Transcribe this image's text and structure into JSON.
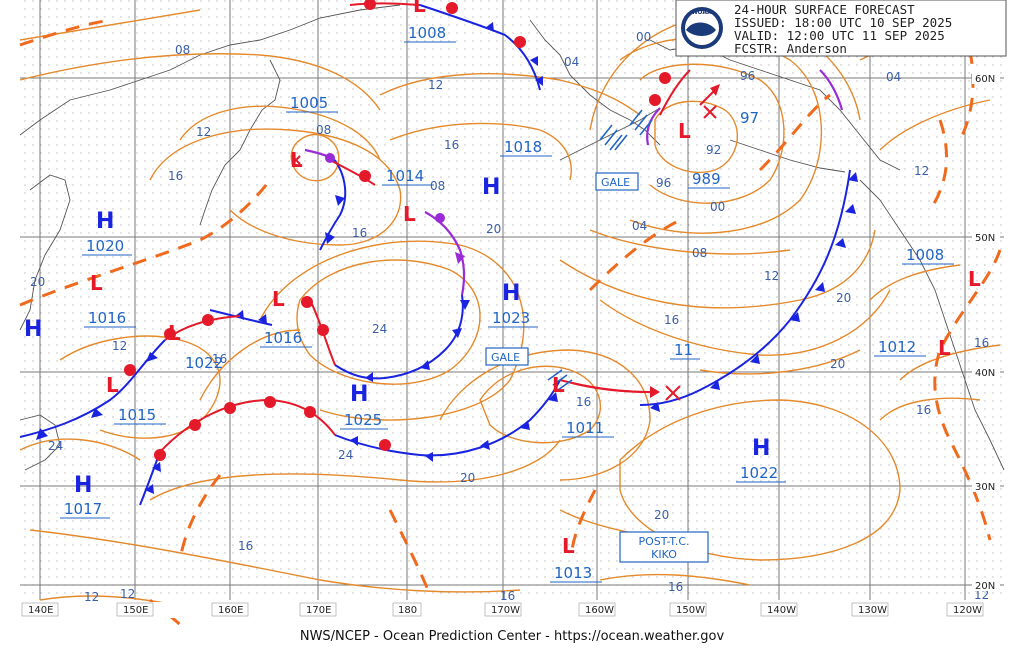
{
  "header": {
    "line1": "24-HOUR SURFACE FORECAST",
    "line2": "ISSUED: 18:00 UTC 10 SEP 2025",
    "line3": "VALID:  12:00 UTC 11 SEP 2025",
    "line4": "FCSTR:  Anderson",
    "logo_text": "NOAA"
  },
  "footer": "NWS/NCEP - Ocean Prediction Center - https://ocean.weather.gov",
  "lon_labels": [
    "140E",
    "150E",
    "160E",
    "170E",
    "180",
    "170W",
    "160W",
    "150W",
    "140W",
    "130W",
    "120W"
  ],
  "lat_labels": [
    "60N",
    "50N",
    "40N",
    "30N",
    "20N"
  ],
  "highs": [
    {
      "label": "H",
      "pressure": "1020"
    },
    {
      "label": "H",
      "pressure": ""
    },
    {
      "label": "H",
      "pressure": "1025"
    },
    {
      "label": "H",
      "pressure": "1017"
    },
    {
      "label": "H",
      "pressure": "1023"
    },
    {
      "label": "H",
      "pressure": ""
    },
    {
      "label": "H",
      "pressure": "1022"
    }
  ],
  "lows": [
    {
      "label": "L",
      "pressure": "1005"
    },
    {
      "label": "L",
      "pressure": "1008"
    },
    {
      "label": "L",
      "pressure": "1014"
    },
    {
      "label": "L",
      "pressure": "1016"
    },
    {
      "label": "L",
      "pressure": "1016"
    },
    {
      "label": "L",
      "pressure": "1015"
    },
    {
      "label": "L",
      "pressure": "1018"
    },
    {
      "label": "L",
      "pressure": "989"
    },
    {
      "label": "L",
      "pressure": "1011"
    },
    {
      "label": "L",
      "pressure": "1013"
    },
    {
      "label": "L",
      "pressure": "1008"
    },
    {
      "label": "L",
      "pressure": "1012"
    }
  ],
  "other_pressure_labels": [
    "1022",
    "11",
    "97"
  ],
  "warnings": [
    "GALE",
    "GALE"
  ],
  "storm_box": {
    "line1": "POST-T.C.",
    "line2": "KIKO"
  },
  "isobar_labels": [
    "08",
    "12",
    "16",
    "20",
    "24",
    "00",
    "04",
    "08",
    "16",
    "12",
    "16",
    "20",
    "24",
    "20",
    "16",
    "12",
    "96",
    "92",
    "96",
    "00",
    "04",
    "08",
    "12",
    "16",
    "20",
    "16",
    "12",
    "20",
    "16",
    "12",
    "04",
    "08",
    "12",
    "16",
    "20",
    "24",
    "16",
    "16",
    "12",
    "16"
  ]
}
